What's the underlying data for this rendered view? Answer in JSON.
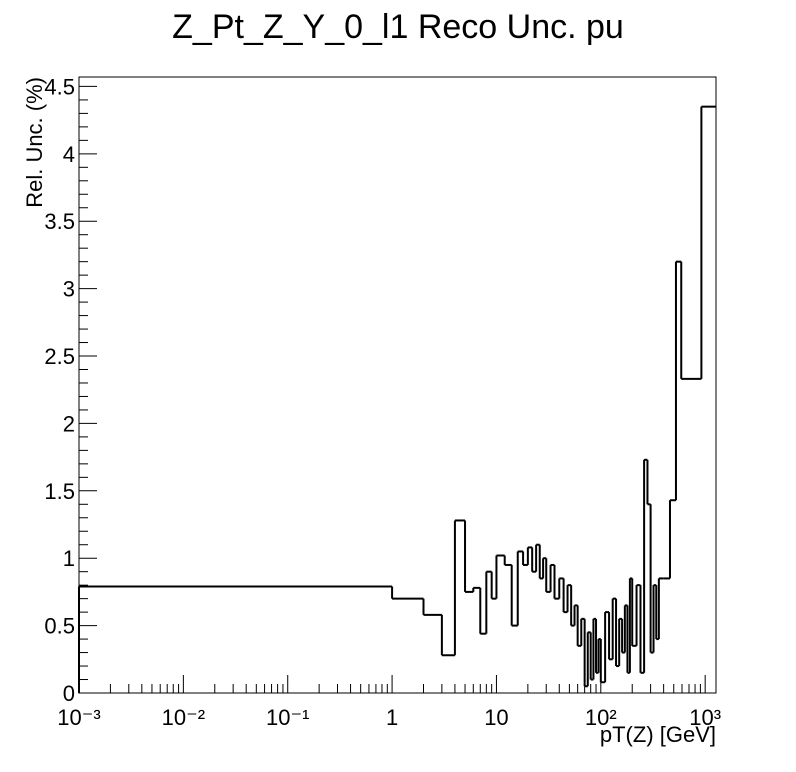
{
  "chart_data": {
    "type": "histogram",
    "title": "Z_Pt_Z_Y_0_l1 Reco Unc. pu",
    "x_label": "pT(Z) [GeV]",
    "y_label": "Rel. Unc. (%)",
    "x_log": true,
    "color": "#000000",
    "bins": [
      0.001,
      1,
      2,
      3,
      4,
      5,
      6,
      7,
      8,
      9,
      10,
      12,
      14,
      16,
      18,
      20,
      22,
      24,
      26,
      28,
      30,
      33,
      36,
      40,
      44,
      48,
      52,
      56,
      60,
      65,
      70,
      75,
      80,
      85,
      90,
      95,
      100,
      110,
      120,
      130,
      140,
      150,
      160,
      170,
      180,
      190,
      200,
      220,
      240,
      260,
      280,
      300,
      320,
      340,
      360,
      400,
      460,
      525,
      590,
      920,
      1270
    ],
    "values": [
      0.79,
      0.7,
      0.58,
      0.28,
      1.28,
      0.75,
      0.78,
      0.44,
      0.9,
      0.7,
      1.02,
      0.95,
      0.5,
      1.05,
      0.95,
      1.08,
      0.9,
      1.1,
      0.85,
      1.0,
      0.75,
      0.95,
      0.7,
      0.85,
      0.6,
      0.8,
      0.5,
      0.65,
      0.35,
      0.55,
      0.05,
      0.45,
      0.1,
      0.55,
      0.15,
      0.4,
      0.08,
      0.6,
      0.25,
      0.7,
      0.2,
      0.55,
      0.3,
      0.65,
      0.15,
      0.85,
      0.35,
      0.8,
      0.15,
      1.73,
      1.4,
      0.3,
      0.8,
      0.4,
      0.85,
      0.85,
      1.43,
      3.2,
      2.33,
      4.35
    ],
    "xlim": [
      0.001,
      1270
    ],
    "ylim": [
      0,
      4.57
    ],
    "xticks": [
      {
        "value": 0.001,
        "label": "10⁻³"
      },
      {
        "value": 0.01,
        "label": "10⁻²"
      },
      {
        "value": 0.1,
        "label": "10⁻¹"
      },
      1,
      10,
      {
        "value": 100,
        "label": "10²"
      },
      {
        "value": 1000,
        "label": "10³"
      }
    ],
    "yticks": [
      0,
      0.5,
      1,
      1.5,
      2,
      2.5,
      3,
      3.5,
      4,
      4.5
    ]
  }
}
